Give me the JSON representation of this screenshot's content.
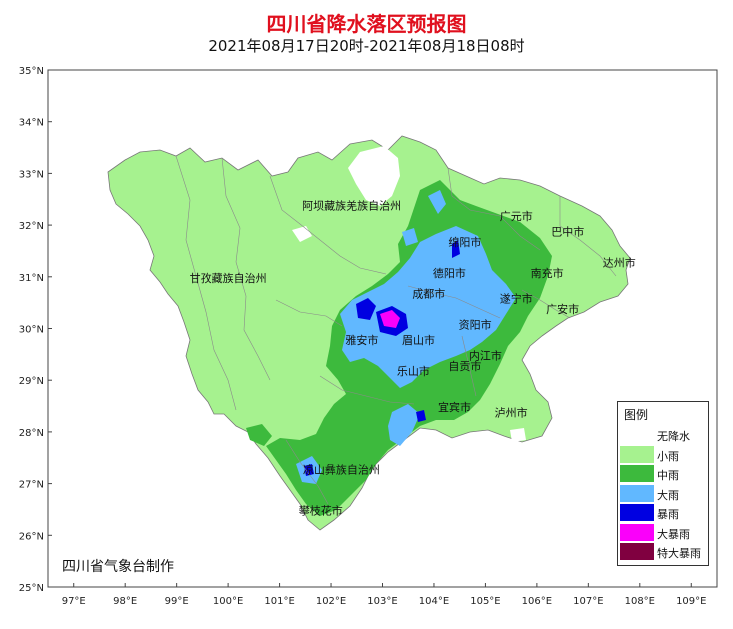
{
  "title": "四川省降水落区预报图",
  "subtitle": "2021年08月17日20时-2021年08月18日08时",
  "credit": "四川省气象台制作",
  "y_axis_labels": [
    "35°N",
    "34°N",
    "33°N",
    "32°N",
    "31°N",
    "30°N",
    "29°N",
    "28°N",
    "27°N",
    "26°N",
    "25°N"
  ],
  "x_axis_labels": [
    "97°E",
    "98°E",
    "99°E",
    "100°E",
    "101°E",
    "102°E",
    "103°E",
    "104°E",
    "105°E",
    "106°E",
    "107°E",
    "108°E",
    "109°E"
  ],
  "places": [
    {
      "name": "阿坝藏族羌族自治州",
      "lon": 102.4,
      "lat": 32.3
    },
    {
      "name": "广元市",
      "lon": 105.6,
      "lat": 32.1
    },
    {
      "name": "巴中市",
      "lon": 106.6,
      "lat": 31.8
    },
    {
      "name": "绵阳市",
      "lon": 104.6,
      "lat": 31.6
    },
    {
      "name": "达州市",
      "lon": 107.6,
      "lat": 31.2
    },
    {
      "name": "甘孜藏族自治州",
      "lon": 100.0,
      "lat": 30.9
    },
    {
      "name": "德阳市",
      "lon": 104.3,
      "lat": 31.0
    },
    {
      "name": "南充市",
      "lon": 106.2,
      "lat": 31.0
    },
    {
      "name": "成都市",
      "lon": 103.9,
      "lat": 30.6
    },
    {
      "name": "遂宁市",
      "lon": 105.6,
      "lat": 30.5
    },
    {
      "name": "广安市",
      "lon": 106.5,
      "lat": 30.3
    },
    {
      "name": "资阳市",
      "lon": 104.8,
      "lat": 30.0
    },
    {
      "name": "雅安市",
      "lon": 102.6,
      "lat": 29.7
    },
    {
      "name": "眉山市",
      "lon": 103.7,
      "lat": 29.7
    },
    {
      "name": "内江市",
      "lon": 105.0,
      "lat": 29.4
    },
    {
      "name": "自贡市",
      "lon": 104.6,
      "lat": 29.2
    },
    {
      "name": "乐山市",
      "lon": 103.6,
      "lat": 29.1
    },
    {
      "name": "宜宾市",
      "lon": 104.4,
      "lat": 28.4
    },
    {
      "name": "泸州市",
      "lon": 105.5,
      "lat": 28.3
    },
    {
      "name": "凉山彝族自治州",
      "lon": 102.2,
      "lat": 27.2
    },
    {
      "name": "攀枝花市",
      "lon": 101.8,
      "lat": 26.4
    }
  ],
  "legend": {
    "title": "图例",
    "items": [
      {
        "label": "无降水",
        "color": "#ffffff"
      },
      {
        "label": "小雨",
        "color": "#a6f28f"
      },
      {
        "label": "中雨",
        "color": "#3dba3d"
      },
      {
        "label": "大雨",
        "color": "#61b8ff"
      },
      {
        "label": "暴雨",
        "color": "#0000e1"
      },
      {
        "label": "大暴雨",
        "color": "#fa00fa"
      },
      {
        "label": "特大暴雨",
        "color": "#800040"
      }
    ]
  }
}
